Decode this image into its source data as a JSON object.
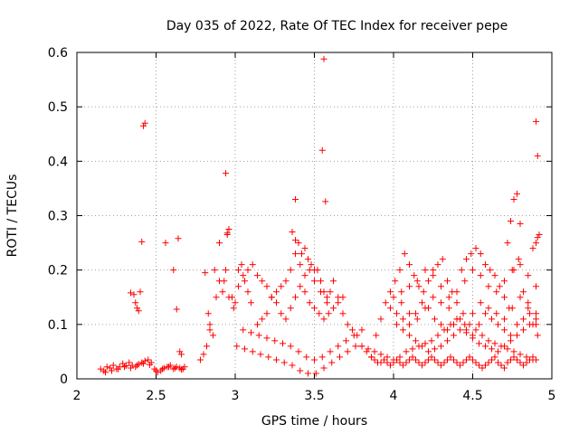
{
  "chart_data": {
    "type": "scatter",
    "title": "Day 035 of 2022, Rate Of TEC Index for receiver pepe",
    "xlabel": "GPS time / hours",
    "ylabel": "ROTI / TECUs",
    "xlim": [
      2,
      5
    ],
    "ylim": [
      0,
      0.6
    ],
    "x_ticks": [
      "2",
      "2.5",
      "3",
      "3.5",
      "4",
      "4.5",
      "5"
    ],
    "y_ticks": [
      "0",
      "0.1",
      "0.2",
      "0.3",
      "0.4",
      "0.5",
      "0.6"
    ],
    "grid": true,
    "marker": "+",
    "series": [
      {
        "name": "pepe",
        "color": "#ff0000",
        "x": [
          2.15,
          2.17,
          2.19,
          2.21,
          2.23,
          2.25,
          2.27,
          2.29,
          2.31,
          2.33,
          2.35,
          2.37,
          2.39,
          2.41,
          2.43,
          2.45,
          2.47,
          2.49,
          2.51,
          2.53,
          2.55,
          2.57,
          2.59,
          2.61,
          2.63,
          2.65,
          2.67,
          2.68,
          2.18,
          2.22,
          2.26,
          2.3,
          2.34,
          2.38,
          2.42,
          2.46,
          2.5,
          2.54,
          2.58,
          2.62,
          2.66,
          2.34,
          2.36,
          2.37,
          2.38,
          2.39,
          2.4,
          2.41,
          2.42,
          2.43,
          2.56,
          2.61,
          2.63,
          2.64,
          2.65,
          2.66,
          2.78,
          2.8,
          2.82,
          2.83,
          2.84,
          2.86,
          2.88,
          2.9,
          2.92,
          2.94,
          2.95,
          2.96,
          2.98,
          3.0,
          3.02,
          3.04,
          3.06,
          3.08,
          3.1,
          2.81,
          2.84,
          2.87,
          2.9,
          2.93,
          2.96,
          2.99,
          3.02,
          3.05,
          3.08,
          3.11,
          3.14,
          3.17,
          3.2,
          3.23,
          3.26,
          3.29,
          3.32,
          3.35,
          3.38,
          3.41,
          3.44,
          3.47,
          3.5,
          3.14,
          3.17,
          3.2,
          3.23,
          3.26,
          3.29,
          3.32,
          3.35,
          3.38,
          3.41,
          3.44,
          3.47,
          3.5,
          3.53,
          3.56,
          3.59,
          3.62,
          3.65,
          3.68,
          3.36,
          3.38,
          3.4,
          3.42,
          3.44,
          3.46,
          3.48,
          3.5,
          3.52,
          3.54,
          3.56,
          3.58,
          3.6,
          3.05,
          3.1,
          3.15,
          3.2,
          3.25,
          3.3,
          3.35,
          3.4,
          3.45,
          3.5,
          3.55,
          3.6,
          3.65,
          3.7,
          3.75,
          3.8,
          3.01,
          3.06,
          3.11,
          3.16,
          3.21,
          3.26,
          3.31,
          3.36,
          3.41,
          3.46,
          3.51,
          3.56,
          3.61,
          3.66,
          3.71,
          3.76,
          2.94,
          2.95,
          3.38,
          3.55,
          3.56,
          3.57,
          3.54,
          3.58,
          3.62,
          3.65,
          3.68,
          3.71,
          3.74,
          3.77,
          3.8,
          3.83,
          3.86,
          3.89,
          3.92,
          3.95,
          3.98,
          4.01,
          4.04,
          4.07,
          4.1,
          4.13,
          4.16,
          4.19,
          4.22,
          4.25,
          4.28,
          4.31,
          4.34,
          4.37,
          4.4,
          4.43,
          4.46,
          4.49,
          4.52,
          4.55,
          4.58,
          4.61,
          4.64,
          4.67,
          4.7,
          4.73,
          4.76,
          4.79,
          4.82,
          4.85,
          4.88,
          4.91,
          3.8,
          3.84,
          3.88,
          3.92,
          3.96,
          4.0,
          4.04,
          4.08,
          4.12,
          4.16,
          4.2,
          4.24,
          4.28,
          4.32,
          4.36,
          4.4,
          4.44,
          4.48,
          4.52,
          4.56,
          4.6,
          4.64,
          4.68,
          4.72,
          4.76,
          4.8,
          4.84,
          4.88,
          3.86,
          3.88,
          3.9,
          3.92,
          3.94,
          3.96,
          3.98,
          4.0,
          4.02,
          4.04,
          4.06,
          4.08,
          4.1,
          4.12,
          4.14,
          4.16,
          4.18,
          4.2,
          4.22,
          4.24,
          4.26,
          4.28,
          4.3,
          4.32,
          4.34,
          4.36,
          4.38,
          4.4,
          4.42,
          4.44,
          4.46,
          4.48,
          4.5,
          4.52,
          4.54,
          4.56,
          4.58,
          4.6,
          4.62,
          4.64,
          4.66,
          4.68,
          4.7,
          4.72,
          4.74,
          4.76,
          4.78,
          4.8,
          4.82,
          4.84,
          4.86,
          4.88,
          4.9,
          3.98,
          4.02,
          4.06,
          4.1,
          4.14,
          4.18,
          4.22,
          4.26,
          4.3,
          4.34,
          4.38,
          4.42,
          4.46,
          4.5,
          4.54,
          4.58,
          4.62,
          4.66,
          4.7,
          4.74,
          4.78,
          4.82,
          4.86,
          4.9,
          4.0,
          4.05,
          4.1,
          4.15,
          4.2,
          4.25,
          4.3,
          4.35,
          4.4,
          4.45,
          4.5,
          4.55,
          4.6,
          4.65,
          4.7,
          4.75,
          4.8,
          4.85,
          4.9,
          4.02,
          4.06,
          4.1,
          4.14,
          4.18,
          4.22,
          4.26,
          4.3,
          4.34,
          4.38,
          4.42,
          4.46,
          4.5,
          4.54,
          4.58,
          4.62,
          4.66,
          4.7,
          4.74,
          4.78,
          4.82,
          4.86,
          4.9,
          4.05,
          4.1,
          4.15,
          4.2,
          4.25,
          4.3,
          4.35,
          4.4,
          4.45,
          4.5,
          4.55,
          4.6,
          4.65,
          4.7,
          4.75,
          4.8,
          4.85,
          4.9,
          4.72,
          4.74,
          4.76,
          4.78,
          4.8,
          4.88,
          4.9,
          4.91,
          4.92,
          4.9,
          4.91
        ],
        "y": [
          0.018,
          0.015,
          0.022,
          0.02,
          0.025,
          0.018,
          0.022,
          0.028,
          0.024,
          0.03,
          0.025,
          0.022,
          0.027,
          0.03,
          0.033,
          0.035,
          0.03,
          0.018,
          0.012,
          0.015,
          0.02,
          0.022,
          0.025,
          0.018,
          0.022,
          0.02,
          0.018,
          0.022,
          0.012,
          0.015,
          0.018,
          0.022,
          0.02,
          0.025,
          0.028,
          0.026,
          0.015,
          0.018,
          0.022,
          0.02,
          0.017,
          0.158,
          0.155,
          0.14,
          0.13,
          0.125,
          0.16,
          0.252,
          0.465,
          0.47,
          0.25,
          0.2,
          0.128,
          0.258,
          0.05,
          0.045,
          0.035,
          0.045,
          0.06,
          0.12,
          0.1,
          0.08,
          0.15,
          0.18,
          0.16,
          0.2,
          0.265,
          0.275,
          0.15,
          0.14,
          0.2,
          0.21,
          0.18,
          0.16,
          0.14,
          0.195,
          0.09,
          0.2,
          0.25,
          0.18,
          0.15,
          0.13,
          0.17,
          0.19,
          0.2,
          0.21,
          0.19,
          0.18,
          0.17,
          0.15,
          0.16,
          0.17,
          0.18,
          0.2,
          0.23,
          0.21,
          0.19,
          0.2,
          0.18,
          0.1,
          0.11,
          0.12,
          0.15,
          0.14,
          0.12,
          0.11,
          0.13,
          0.15,
          0.17,
          0.16,
          0.14,
          0.13,
          0.12,
          0.11,
          0.12,
          0.13,
          0.14,
          0.15,
          0.27,
          0.255,
          0.25,
          0.23,
          0.24,
          0.22,
          0.21,
          0.2,
          0.2,
          0.18,
          0.16,
          0.15,
          0.16,
          0.09,
          0.085,
          0.08,
          0.075,
          0.07,
          0.065,
          0.06,
          0.05,
          0.04,
          0.035,
          0.04,
          0.05,
          0.06,
          0.07,
          0.08,
          0.09,
          0.06,
          0.055,
          0.05,
          0.045,
          0.04,
          0.035,
          0.03,
          0.025,
          0.015,
          0.01,
          0.01,
          0.02,
          0.03,
          0.04,
          0.05,
          0.06,
          0.378,
          0.268,
          0.33,
          0.42,
          0.588,
          0.326,
          0.16,
          0.14,
          0.18,
          0.15,
          0.12,
          0.1,
          0.09,
          0.08,
          0.06,
          0.05,
          0.04,
          0.08,
          0.11,
          0.14,
          0.16,
          0.18,
          0.2,
          0.23,
          0.21,
          0.19,
          0.17,
          0.16,
          0.18,
          0.2,
          0.21,
          0.22,
          0.18,
          0.16,
          0.14,
          0.2,
          0.22,
          0.23,
          0.24,
          0.23,
          0.21,
          0.2,
          0.19,
          0.17,
          0.15,
          0.13,
          0.2,
          0.22,
          0.16,
          0.13,
          0.1,
          0.08,
          0.06,
          0.055,
          0.05,
          0.045,
          0.04,
          0.035,
          0.04,
          0.05,
          0.055,
          0.06,
          0.065,
          0.07,
          0.08,
          0.09,
          0.1,
          0.11,
          0.12,
          0.1,
          0.09,
          0.08,
          0.07,
          0.065,
          0.06,
          0.055,
          0.05,
          0.045,
          0.04,
          0.035,
          0.04,
          0.035,
          0.03,
          0.03,
          0.035,
          0.03,
          0.025,
          0.03,
          0.035,
          0.03,
          0.025,
          0.03,
          0.035,
          0.04,
          0.035,
          0.03,
          0.025,
          0.03,
          0.035,
          0.04,
          0.035,
          0.03,
          0.025,
          0.03,
          0.035,
          0.04,
          0.035,
          0.03,
          0.025,
          0.03,
          0.035,
          0.04,
          0.035,
          0.03,
          0.025,
          0.02,
          0.025,
          0.03,
          0.035,
          0.04,
          0.03,
          0.025,
          0.02,
          0.03,
          0.035,
          0.04,
          0.035,
          0.03,
          0.025,
          0.03,
          0.035,
          0.04,
          0.035,
          0.13,
          0.12,
          0.11,
          0.1,
          0.12,
          0.14,
          0.13,
          0.11,
          0.1,
          0.09,
          0.1,
          0.11,
          0.09,
          0.08,
          0.1,
          0.12,
          0.11,
          0.1,
          0.09,
          0.08,
          0.1,
          0.11,
          0.12,
          0.1,
          0.15,
          0.14,
          0.12,
          0.11,
          0.13,
          0.15,
          0.14,
          0.13,
          0.11,
          0.1,
          0.12,
          0.14,
          0.13,
          0.12,
          0.11,
          0.13,
          0.15,
          0.14,
          0.12,
          0.1,
          0.09,
          0.08,
          0.07,
          0.06,
          0.05,
          0.055,
          0.06,
          0.07,
          0.08,
          0.09,
          0.085,
          0.075,
          0.065,
          0.06,
          0.055,
          0.05,
          0.06,
          0.07,
          0.08,
          0.09,
          0.1,
          0.11,
          0.16,
          0.17,
          0.18,
          0.2,
          0.19,
          0.17,
          0.15,
          0.16,
          0.18,
          0.2,
          0.19,
          0.17,
          0.16,
          0.18,
          0.2,
          0.21,
          0.19,
          0.17,
          0.25,
          0.29,
          0.33,
          0.34,
          0.285,
          0.24,
          0.25,
          0.26,
          0.265,
          0.473,
          0.41
        ]
      }
    ]
  }
}
